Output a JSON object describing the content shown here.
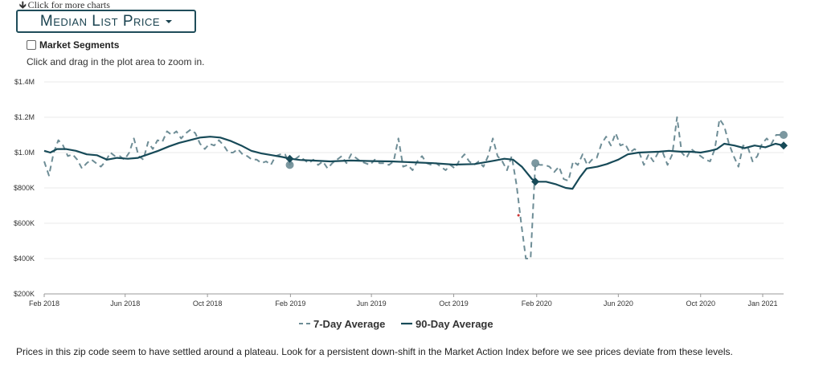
{
  "top_link": {
    "text": "Click for more charts",
    "icon": "arrow-down-icon"
  },
  "metric_button": {
    "label": "Median List Price"
  },
  "segments": {
    "label": "Market Segments",
    "checked": false
  },
  "hint": "Click and drag in the plot area to zoom in.",
  "colors": {
    "accent": "#1f4d5a",
    "series7": "#6e8d96",
    "series90": "#174a58",
    "grid": "#e8e8e8"
  },
  "footer": "Prices in this zip code seem to have settled around a plateau. Look for a persistent down-shift in the Market Action Index before we see prices deviate from these levels.",
  "chart_data": {
    "type": "line",
    "x_type": "date",
    "xlim": [
      "2018-02-01",
      "2021-02-01"
    ],
    "ylim": [
      200000,
      1400000
    ],
    "yticks": [
      {
        "value": 200000,
        "label": "$200K"
      },
      {
        "value": 400000,
        "label": "$400K"
      },
      {
        "value": 600000,
        "label": "$600K"
      },
      {
        "value": 800000,
        "label": "$800K"
      },
      {
        "value": 1000000,
        "label": "$1.0M"
      },
      {
        "value": 1200000,
        "label": "$1.2M"
      },
      {
        "value": 1400000,
        "label": "$1.4M"
      }
    ],
    "xticks": [
      {
        "value": "2018-02-01",
        "label": "Feb 2018"
      },
      {
        "value": "2018-06-01",
        "label": "Jun 2018"
      },
      {
        "value": "2018-10-01",
        "label": "Oct 2018"
      },
      {
        "value": "2019-02-01",
        "label": "Feb 2019"
      },
      {
        "value": "2019-06-01",
        "label": "Jun 2019"
      },
      {
        "value": "2019-10-01",
        "label": "Oct 2019"
      },
      {
        "value": "2020-02-01",
        "label": "Feb 2020"
      },
      {
        "value": "2020-06-01",
        "label": "Jun 2020"
      },
      {
        "value": "2020-10-01",
        "label": "Oct 2020"
      },
      {
        "value": "2021-01-01",
        "label": "Jan 2021"
      }
    ],
    "grid": true,
    "legend_position": "bottom",
    "series": [
      {
        "name": "7-Day Average",
        "style": "dashed",
        "points": [
          [
            "2018-02-01",
            950000
          ],
          [
            "2018-02-08",
            870000
          ],
          [
            "2018-02-15",
            1000000
          ],
          [
            "2018-02-22",
            1070000
          ],
          [
            "2018-03-01",
            1040000
          ],
          [
            "2018-03-08",
            980000
          ],
          [
            "2018-03-15",
            990000
          ],
          [
            "2018-03-22",
            960000
          ],
          [
            "2018-03-29",
            910000
          ],
          [
            "2018-04-05",
            940000
          ],
          [
            "2018-04-12",
            960000
          ],
          [
            "2018-04-19",
            940000
          ],
          [
            "2018-04-26",
            920000
          ],
          [
            "2018-05-03",
            950000
          ],
          [
            "2018-05-10",
            1000000
          ],
          [
            "2018-05-17",
            980000
          ],
          [
            "2018-05-24",
            980000
          ],
          [
            "2018-05-31",
            960000
          ],
          [
            "2018-06-07",
            1000000
          ],
          [
            "2018-06-14",
            1080000
          ],
          [
            "2018-06-21",
            980000
          ],
          [
            "2018-06-28",
            960000
          ],
          [
            "2018-07-05",
            1060000
          ],
          [
            "2018-07-12",
            1020000
          ],
          [
            "2018-07-19",
            1070000
          ],
          [
            "2018-07-26",
            1060000
          ],
          [
            "2018-08-02",
            1120000
          ],
          [
            "2018-08-09",
            1100000
          ],
          [
            "2018-08-16",
            1120000
          ],
          [
            "2018-08-23",
            1080000
          ],
          [
            "2018-08-30",
            1110000
          ],
          [
            "2018-09-06",
            1130000
          ],
          [
            "2018-09-13",
            1110000
          ],
          [
            "2018-09-20",
            1050000
          ],
          [
            "2018-09-27",
            1020000
          ],
          [
            "2018-10-04",
            1050000
          ],
          [
            "2018-10-11",
            1040000
          ],
          [
            "2018-10-18",
            1070000
          ],
          [
            "2018-10-25",
            1040000
          ],
          [
            "2018-11-01",
            1000000
          ],
          [
            "2018-11-08",
            1000000
          ],
          [
            "2018-11-15",
            1020000
          ],
          [
            "2018-11-22",
            990000
          ],
          [
            "2018-11-29",
            980000
          ],
          [
            "2018-12-06",
            960000
          ],
          [
            "2018-12-13",
            960000
          ],
          [
            "2018-12-20",
            940000
          ],
          [
            "2018-12-27",
            950000
          ],
          [
            "2019-01-03",
            930000
          ],
          [
            "2019-01-10",
            980000
          ],
          [
            "2019-01-17",
            990000
          ],
          [
            "2019-01-24",
            990000
          ],
          [
            "2019-01-31",
            930000
          ],
          [
            "2019-02-07",
            960000
          ],
          [
            "2019-02-14",
            980000
          ],
          [
            "2019-02-21",
            960000
          ],
          [
            "2019-02-28",
            940000
          ],
          [
            "2019-03-07",
            960000
          ],
          [
            "2019-03-14",
            930000
          ],
          [
            "2019-03-21",
            950000
          ],
          [
            "2019-03-28",
            910000
          ],
          [
            "2019-04-04",
            940000
          ],
          [
            "2019-04-11",
            960000
          ],
          [
            "2019-04-18",
            980000
          ],
          [
            "2019-04-25",
            940000
          ],
          [
            "2019-05-02",
            990000
          ],
          [
            "2019-05-09",
            970000
          ],
          [
            "2019-05-16",
            950000
          ],
          [
            "2019-05-23",
            940000
          ],
          [
            "2019-05-30",
            930000
          ],
          [
            "2019-06-06",
            960000
          ],
          [
            "2019-06-13",
            940000
          ],
          [
            "2019-06-20",
            940000
          ],
          [
            "2019-06-27",
            930000
          ],
          [
            "2019-07-04",
            950000
          ],
          [
            "2019-07-11",
            1080000
          ],
          [
            "2019-07-18",
            920000
          ],
          [
            "2019-07-25",
            930000
          ],
          [
            "2019-08-01",
            900000
          ],
          [
            "2019-08-08",
            950000
          ],
          [
            "2019-08-15",
            980000
          ],
          [
            "2019-08-22",
            940000
          ],
          [
            "2019-08-29",
            930000
          ],
          [
            "2019-09-05",
            940000
          ],
          [
            "2019-09-12",
            920000
          ],
          [
            "2019-09-19",
            900000
          ],
          [
            "2019-09-26",
            930000
          ],
          [
            "2019-10-03",
            910000
          ],
          [
            "2019-10-10",
            960000
          ],
          [
            "2019-10-17",
            990000
          ],
          [
            "2019-10-24",
            950000
          ],
          [
            "2019-10-31",
            930000
          ],
          [
            "2019-11-07",
            950000
          ],
          [
            "2019-11-14",
            920000
          ],
          [
            "2019-11-21",
            980000
          ],
          [
            "2019-11-28",
            1080000
          ],
          [
            "2019-12-05",
            980000
          ],
          [
            "2019-12-12",
            950000
          ],
          [
            "2019-12-19",
            900000
          ],
          [
            "2019-12-26",
            980000
          ],
          [
            "2020-01-02",
            820000
          ],
          [
            "2020-01-09",
            600000
          ],
          [
            "2020-01-16",
            400000
          ],
          [
            "2020-01-23",
            400000
          ],
          [
            "2020-01-30",
            940000
          ],
          [
            "2020-02-06",
            930000
          ],
          [
            "2020-02-13",
            930000
          ],
          [
            "2020-02-20",
            920000
          ],
          [
            "2020-02-27",
            890000
          ],
          [
            "2020-03-05",
            920000
          ],
          [
            "2020-03-12",
            850000
          ],
          [
            "2020-03-19",
            840000
          ],
          [
            "2020-03-26",
            950000
          ],
          [
            "2020-04-02",
            930000
          ],
          [
            "2020-04-09",
            990000
          ],
          [
            "2020-04-16",
            930000
          ],
          [
            "2020-04-23",
            960000
          ],
          [
            "2020-04-30",
            970000
          ],
          [
            "2020-05-07",
            1050000
          ],
          [
            "2020-05-14",
            1090000
          ],
          [
            "2020-05-21",
            1040000
          ],
          [
            "2020-05-28",
            1110000
          ],
          [
            "2020-06-04",
            1040000
          ],
          [
            "2020-06-11",
            1050000
          ],
          [
            "2020-06-18",
            1000000
          ],
          [
            "2020-06-25",
            1020000
          ],
          [
            "2020-07-02",
            1000000
          ],
          [
            "2020-07-09",
            930000
          ],
          [
            "2020-07-16",
            990000
          ],
          [
            "2020-07-23",
            950000
          ],
          [
            "2020-07-30",
            1000000
          ],
          [
            "2020-08-06",
            1000000
          ],
          [
            "2020-08-13",
            930000
          ],
          [
            "2020-08-20",
            990000
          ],
          [
            "2020-08-27",
            1200000
          ],
          [
            "2020-09-03",
            1000000
          ],
          [
            "2020-09-10",
            970000
          ],
          [
            "2020-09-17",
            1020000
          ],
          [
            "2020-09-24",
            1000000
          ],
          [
            "2020-10-01",
            980000
          ],
          [
            "2020-10-08",
            960000
          ],
          [
            "2020-10-15",
            950000
          ],
          [
            "2020-10-22",
            1020000
          ],
          [
            "2020-10-29",
            1190000
          ],
          [
            "2020-11-05",
            1150000
          ],
          [
            "2020-11-12",
            1050000
          ],
          [
            "2020-11-19",
            980000
          ],
          [
            "2020-11-26",
            920000
          ],
          [
            "2020-12-03",
            1040000
          ],
          [
            "2020-12-10",
            1030000
          ],
          [
            "2020-12-17",
            950000
          ],
          [
            "2020-12-24",
            980000
          ],
          [
            "2020-12-31",
            1050000
          ],
          [
            "2021-01-07",
            1080000
          ],
          [
            "2021-01-14",
            1050000
          ],
          [
            "2021-01-21",
            1100000
          ],
          [
            "2021-01-28",
            1100000
          ]
        ],
        "highlighted": [
          [
            "2019-01-31",
            930000
          ],
          [
            "2020-01-30",
            940000
          ],
          [
            "2021-02-01",
            1100000
          ]
        ]
      },
      {
        "name": "90-Day Average",
        "style": "solid",
        "points": [
          [
            "2018-02-01",
            1010000
          ],
          [
            "2018-02-10",
            1000000
          ],
          [
            "2018-02-20",
            1020000
          ],
          [
            "2018-03-05",
            1020000
          ],
          [
            "2018-03-20",
            1010000
          ],
          [
            "2018-04-05",
            990000
          ],
          [
            "2018-04-20",
            985000
          ],
          [
            "2018-05-05",
            960000
          ],
          [
            "2018-05-20",
            970000
          ],
          [
            "2018-06-05",
            965000
          ],
          [
            "2018-06-20",
            970000
          ],
          [
            "2018-07-05",
            990000
          ],
          [
            "2018-07-20",
            1010000
          ],
          [
            "2018-08-05",
            1035000
          ],
          [
            "2018-08-20",
            1055000
          ],
          [
            "2018-09-05",
            1070000
          ],
          [
            "2018-09-20",
            1085000
          ],
          [
            "2018-10-05",
            1090000
          ],
          [
            "2018-10-20",
            1085000
          ],
          [
            "2018-11-05",
            1065000
          ],
          [
            "2018-11-20",
            1040000
          ],
          [
            "2018-12-05",
            1010000
          ],
          [
            "2018-12-20",
            995000
          ],
          [
            "2019-01-05",
            985000
          ],
          [
            "2019-01-20",
            975000
          ],
          [
            "2019-02-01",
            965000
          ],
          [
            "2019-02-15",
            958000
          ],
          [
            "2019-03-05",
            955000
          ],
          [
            "2019-04-01",
            950000
          ],
          [
            "2019-05-01",
            955000
          ],
          [
            "2019-06-01",
            952000
          ],
          [
            "2019-07-01",
            950000
          ],
          [
            "2019-08-01",
            945000
          ],
          [
            "2019-09-01",
            940000
          ],
          [
            "2019-10-01",
            932000
          ],
          [
            "2019-11-01",
            935000
          ],
          [
            "2019-12-01",
            955000
          ],
          [
            "2019-12-15",
            965000
          ],
          [
            "2019-12-28",
            960000
          ],
          [
            "2020-01-10",
            920000
          ],
          [
            "2020-01-25",
            850000
          ],
          [
            "2020-02-01",
            835000
          ],
          [
            "2020-02-15",
            835000
          ],
          [
            "2020-03-01",
            820000
          ],
          [
            "2020-03-15",
            800000
          ],
          [
            "2020-03-25",
            795000
          ],
          [
            "2020-04-05",
            860000
          ],
          [
            "2020-04-15",
            910000
          ],
          [
            "2020-05-01",
            920000
          ],
          [
            "2020-05-15",
            935000
          ],
          [
            "2020-06-01",
            960000
          ],
          [
            "2020-06-15",
            990000
          ],
          [
            "2020-07-01",
            1000000
          ],
          [
            "2020-08-01",
            1005000
          ],
          [
            "2020-08-15",
            1010000
          ],
          [
            "2020-09-01",
            1005000
          ],
          [
            "2020-09-15",
            1005000
          ],
          [
            "2020-10-01",
            1000000
          ],
          [
            "2020-10-15",
            1010000
          ],
          [
            "2020-10-25",
            1020000
          ],
          [
            "2020-11-05",
            1050000
          ],
          [
            "2020-11-20",
            1040000
          ],
          [
            "2020-12-05",
            1025000
          ],
          [
            "2020-12-20",
            1040000
          ],
          [
            "2021-01-05",
            1030000
          ],
          [
            "2021-01-20",
            1050000
          ],
          [
            "2021-02-01",
            1040000
          ]
        ],
        "highlighted": [
          [
            "2019-01-31",
            965000
          ],
          [
            "2020-01-30",
            835000
          ],
          [
            "2021-02-01",
            1040000
          ]
        ]
      }
    ],
    "annotations": [
      {
        "x": "2020-01-05",
        "y": 645000,
        "kind": "dot",
        "color": "#cc3333"
      }
    ]
  }
}
